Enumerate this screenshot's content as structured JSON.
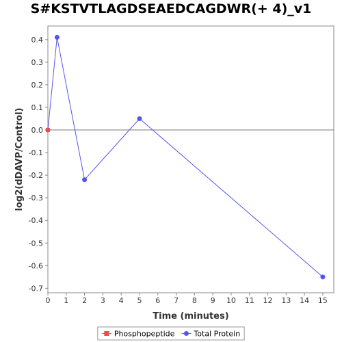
{
  "chart_data": {
    "type": "line",
    "title": "S#KSTVTLAGDSEAEDCAGDWR(+ 4)_v1",
    "xlabel": "Time (minutes)",
    "ylabel": "log2(dDAVP/Control)",
    "xlim": [
      0,
      15.6
    ],
    "ylim": [
      -0.72,
      0.46
    ],
    "x_ticks": [
      0,
      1,
      2,
      3,
      4,
      5,
      6,
      7,
      8,
      9,
      10,
      11,
      12,
      13,
      14,
      15
    ],
    "y_ticks": [
      0.4,
      0.3,
      0.2,
      0.1,
      0.0,
      -0.1,
      -0.2,
      -0.3,
      -0.4,
      -0.5,
      -0.6,
      -0.7
    ],
    "y_tick_labels": [
      "0.4",
      "0.3",
      "0.2",
      "0.1",
      "0.0",
      "-0.1",
      "-0.2",
      "-0.3",
      "-0.4",
      "-0.5",
      "-0.6",
      "-0.7"
    ],
    "zero_line": true,
    "legend_position": "bottom",
    "series": [
      {
        "name": "Phosphopeptide",
        "color": "#e8504f",
        "marker": "square",
        "x": [
          0
        ],
        "y": [
          0.0
        ]
      },
      {
        "name": "Total Protein",
        "color": "#5555ee",
        "marker": "circle",
        "x": [
          0,
          0.5,
          2,
          5,
          15
        ],
        "y": [
          0.0,
          0.41,
          -0.22,
          0.05,
          -0.65
        ]
      }
    ]
  }
}
